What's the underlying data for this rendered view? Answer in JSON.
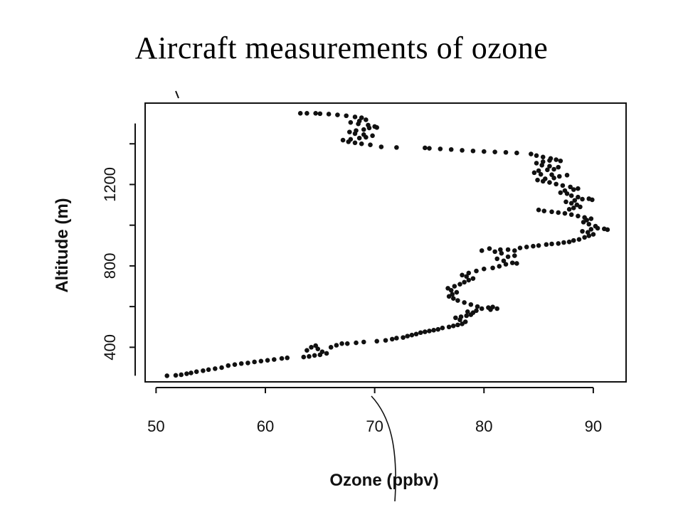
{
  "page": {
    "title": "Aircraft measurements of ozone"
  },
  "chart_data": {
    "type": "scatter",
    "title": "",
    "xlabel": "Ozone (ppbv)",
    "ylabel": "Altitude (m)",
    "xlim": [
      49,
      93
    ],
    "ylim": [
      230,
      1600
    ],
    "x_ticks": [
      50,
      60,
      70,
      80,
      90
    ],
    "y_ticks": [
      400,
      800,
      1200
    ],
    "y_minor_ticks": [
      600,
      1000,
      1400
    ],
    "grid": false,
    "legend": "none",
    "marker_color": "#111111",
    "series": [
      {
        "points": [
          [
            51.0,
            260
          ],
          [
            51.8,
            262
          ],
          [
            52.3,
            265
          ],
          [
            52.8,
            270
          ],
          [
            53.2,
            274
          ],
          [
            53.7,
            280
          ],
          [
            54.3,
            285
          ],
          [
            54.8,
            290
          ],
          [
            55.4,
            295
          ],
          [
            56.0,
            300
          ],
          [
            56.6,
            310
          ],
          [
            57.2,
            315
          ],
          [
            57.8,
            320
          ],
          [
            58.4,
            323
          ],
          [
            59.0,
            328
          ],
          [
            59.6,
            332
          ],
          [
            60.2,
            336
          ],
          [
            60.8,
            340
          ],
          [
            61.5,
            345
          ],
          [
            62.0,
            348
          ],
          [
            63.5,
            352
          ],
          [
            64.0,
            355
          ],
          [
            64.5,
            360
          ],
          [
            65.0,
            363
          ],
          [
            63.8,
            385
          ],
          [
            64.2,
            400
          ],
          [
            64.8,
            392
          ],
          [
            65.2,
            378
          ],
          [
            65.6,
            370
          ],
          [
            64.6,
            408
          ],
          [
            66.0,
            400
          ],
          [
            66.5,
            410
          ],
          [
            67.0,
            418
          ],
          [
            67.5,
            418
          ],
          [
            68.3,
            422
          ],
          [
            69.0,
            426
          ],
          [
            70.2,
            430
          ],
          [
            71.0,
            434
          ],
          [
            71.6,
            440
          ],
          [
            72.0,
            445
          ],
          [
            72.6,
            448
          ],
          [
            73.0,
            455
          ],
          [
            73.4,
            460
          ],
          [
            73.8,
            465
          ],
          [
            74.2,
            472
          ],
          [
            74.6,
            476
          ],
          [
            75.0,
            480
          ],
          [
            75.4,
            484
          ],
          [
            75.8,
            488
          ],
          [
            76.2,
            495
          ],
          [
            76.8,
            500
          ],
          [
            77.2,
            505
          ],
          [
            77.6,
            510
          ],
          [
            78.0,
            515
          ],
          [
            78.3,
            525
          ],
          [
            77.8,
            535
          ],
          [
            77.4,
            545
          ],
          [
            77.9,
            550
          ],
          [
            78.4,
            555
          ],
          [
            78.8,
            560
          ],
          [
            79.0,
            570
          ],
          [
            78.5,
            575
          ],
          [
            79.3,
            580
          ],
          [
            79.8,
            590
          ],
          [
            80.4,
            595
          ],
          [
            80.8,
            598
          ],
          [
            81.2,
            590
          ],
          [
            80.6,
            585
          ],
          [
            79.4,
            600
          ],
          [
            78.8,
            610
          ],
          [
            78.2,
            620
          ],
          [
            77.6,
            630
          ],
          [
            77.2,
            640
          ],
          [
            76.8,
            650
          ],
          [
            77.1,
            660
          ],
          [
            77.5,
            670
          ],
          [
            77.0,
            680
          ],
          [
            76.7,
            690
          ],
          [
            77.3,
            700
          ],
          [
            77.8,
            710
          ],
          [
            78.2,
            720
          ],
          [
            78.6,
            730
          ],
          [
            79.0,
            738
          ],
          [
            78.4,
            748
          ],
          [
            78.0,
            755
          ],
          [
            78.6,
            765
          ],
          [
            79.3,
            775
          ],
          [
            80.0,
            785
          ],
          [
            80.8,
            790
          ],
          [
            81.4,
            798
          ],
          [
            82.0,
            808
          ],
          [
            82.6,
            815
          ],
          [
            83.0,
            812
          ],
          [
            81.8,
            825
          ],
          [
            81.2,
            835
          ],
          [
            82.2,
            845
          ],
          [
            82.8,
            850
          ],
          [
            81.6,
            862
          ],
          [
            81.0,
            870
          ],
          [
            81.5,
            880
          ],
          [
            82.2,
            880
          ],
          [
            82.8,
            875
          ],
          [
            79.8,
            875
          ],
          [
            80.5,
            885
          ],
          [
            83.3,
            888
          ],
          [
            83.9,
            893
          ],
          [
            84.5,
            897
          ],
          [
            85.0,
            900
          ],
          [
            85.7,
            905
          ],
          [
            86.2,
            908
          ],
          [
            86.8,
            910
          ],
          [
            87.3,
            915
          ],
          [
            87.8,
            918
          ],
          [
            88.2,
            925
          ],
          [
            88.7,
            930
          ],
          [
            89.2,
            940
          ],
          [
            89.6,
            948
          ],
          [
            90.0,
            955
          ],
          [
            89.5,
            965
          ],
          [
            89.0,
            970
          ],
          [
            89.8,
            980
          ],
          [
            90.4,
            985
          ],
          [
            91.0,
            982
          ],
          [
            91.3,
            978
          ],
          [
            90.2,
            995
          ],
          [
            89.6,
            1005
          ],
          [
            89.1,
            1015
          ],
          [
            89.4,
            1025
          ],
          [
            89.8,
            1032
          ],
          [
            89.2,
            1038
          ],
          [
            88.6,
            1045
          ],
          [
            88.0,
            1052
          ],
          [
            87.4,
            1058
          ],
          [
            86.8,
            1062
          ],
          [
            86.2,
            1066
          ],
          [
            85.5,
            1070
          ],
          [
            85.0,
            1075
          ],
          [
            87.8,
            1078
          ],
          [
            88.2,
            1085
          ],
          [
            88.8,
            1090
          ],
          [
            88.5,
            1100
          ],
          [
            88.0,
            1108
          ],
          [
            87.5,
            1115
          ],
          [
            88.3,
            1122
          ],
          [
            89.0,
            1128
          ],
          [
            89.6,
            1130
          ],
          [
            89.9,
            1125
          ],
          [
            88.6,
            1138
          ],
          [
            88.0,
            1145
          ],
          [
            87.6,
            1155
          ],
          [
            87.0,
            1160
          ],
          [
            87.4,
            1170
          ],
          [
            88.2,
            1175
          ],
          [
            88.6,
            1180
          ],
          [
            87.9,
            1188
          ],
          [
            87.2,
            1195
          ],
          [
            86.6,
            1202
          ],
          [
            86.0,
            1210
          ],
          [
            85.4,
            1216
          ],
          [
            84.9,
            1222
          ],
          [
            85.6,
            1228
          ],
          [
            86.4,
            1232
          ],
          [
            86.9,
            1240
          ],
          [
            87.6,
            1246
          ],
          [
            86.2,
            1248
          ],
          [
            85.2,
            1250
          ],
          [
            84.6,
            1258
          ],
          [
            85.0,
            1268
          ],
          [
            85.8,
            1272
          ],
          [
            86.4,
            1275
          ],
          [
            86.8,
            1285
          ],
          [
            86.0,
            1290
          ],
          [
            85.3,
            1295
          ],
          [
            84.8,
            1305
          ],
          [
            85.4,
            1312
          ],
          [
            86.0,
            1318
          ],
          [
            86.6,
            1322
          ],
          [
            87.0,
            1316
          ],
          [
            86.1,
            1328
          ],
          [
            85.4,
            1335
          ],
          [
            84.8,
            1342
          ],
          [
            84.3,
            1350
          ],
          [
            83.0,
            1355
          ],
          [
            82.0,
            1358
          ],
          [
            81.0,
            1360
          ],
          [
            80.0,
            1362
          ],
          [
            79.0,
            1365
          ],
          [
            78.0,
            1368
          ],
          [
            77.0,
            1372
          ],
          [
            76.0,
            1375
          ],
          [
            75.0,
            1378
          ],
          [
            74.6,
            1380
          ],
          [
            72.0,
            1382
          ],
          [
            70.6,
            1385
          ],
          [
            69.6,
            1395
          ],
          [
            68.8,
            1400
          ],
          [
            68.2,
            1405
          ],
          [
            67.6,
            1410
          ],
          [
            67.1,
            1418
          ],
          [
            67.8,
            1422
          ],
          [
            68.6,
            1428
          ],
          [
            69.2,
            1432
          ],
          [
            69.8,
            1440
          ],
          [
            69.0,
            1445
          ],
          [
            68.2,
            1450
          ],
          [
            67.7,
            1458
          ],
          [
            68.3,
            1465
          ],
          [
            69.0,
            1470
          ],
          [
            69.5,
            1478
          ],
          [
            70.2,
            1480
          ],
          [
            70.0,
            1485
          ],
          [
            69.4,
            1492
          ],
          [
            68.5,
            1498
          ],
          [
            67.8,
            1505
          ],
          [
            68.6,
            1512
          ],
          [
            69.2,
            1518
          ],
          [
            68.8,
            1528
          ],
          [
            68.2,
            1532
          ],
          [
            67.4,
            1538
          ],
          [
            66.6,
            1542
          ],
          [
            65.8,
            1546
          ],
          [
            65.0,
            1548
          ],
          [
            64.6,
            1550
          ],
          [
            63.8,
            1550
          ],
          [
            63.2,
            1550
          ]
        ]
      }
    ]
  }
}
